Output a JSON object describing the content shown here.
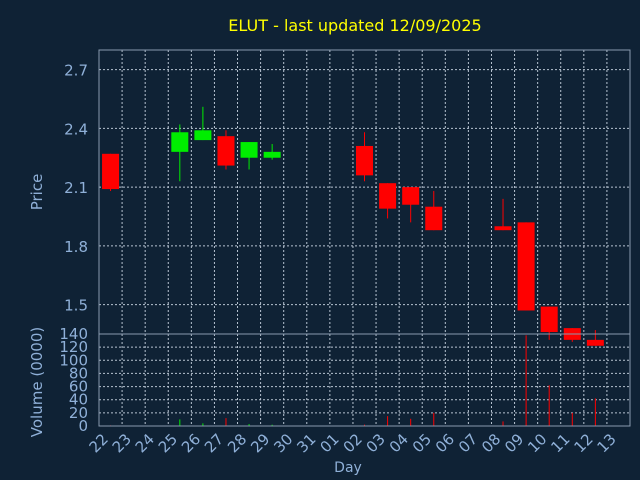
{
  "chart_data": {
    "type": "candlestick",
    "title": "ELUT - last updated 12/09/2025",
    "xlabel": "Day",
    "price_panel": {
      "ylabel": "Price",
      "ylim": [
        1.35,
        2.8
      ],
      "yticks": [
        "2.7",
        "2.4",
        "2.1",
        "1.8",
        "1.5"
      ],
      "grid": true
    },
    "volume_panel": {
      "ylabel": "Volume (0000)",
      "ylim": [
        0,
        140
      ],
      "yticks": [
        "140",
        "120",
        "100",
        "80",
        "60",
        "40",
        "20",
        "0"
      ],
      "grid": true
    },
    "days": [
      "22",
      "23",
      "24",
      "25",
      "26",
      "27",
      "28",
      "29",
      "30",
      "31",
      "01",
      "02",
      "03",
      "04",
      "05",
      "06",
      "07",
      "08",
      "09",
      "10",
      "11",
      "12",
      "13"
    ],
    "candles": [
      {
        "day": "22",
        "open": 2.27,
        "high": 2.27,
        "low": 2.08,
        "close": 2.09,
        "volume": 1
      },
      {
        "day": "25",
        "open": 2.28,
        "high": 2.42,
        "low": 2.13,
        "close": 2.38,
        "volume": 10
      },
      {
        "day": "26",
        "open": 2.34,
        "high": 2.51,
        "low": 2.34,
        "close": 2.39,
        "volume": 4
      },
      {
        "day": "27",
        "open": 2.36,
        "high": 2.39,
        "low": 2.19,
        "close": 2.21,
        "volume": 12
      },
      {
        "day": "28",
        "open": 2.25,
        "high": 2.33,
        "low": 2.19,
        "close": 2.33,
        "volume": 3
      },
      {
        "day": "29",
        "open": 2.25,
        "high": 2.32,
        "low": 2.24,
        "close": 2.28,
        "volume": 2
      },
      {
        "day": "02",
        "open": 2.31,
        "high": 2.38,
        "low": 2.13,
        "close": 2.16,
        "volume": 2
      },
      {
        "day": "03",
        "open": 2.12,
        "high": 2.12,
        "low": 1.94,
        "close": 1.99,
        "volume": 15
      },
      {
        "day": "04",
        "open": 2.1,
        "high": 2.1,
        "low": 1.92,
        "close": 2.01,
        "volume": 11
      },
      {
        "day": "05",
        "open": 2.0,
        "high": 2.08,
        "low": 1.88,
        "close": 1.88,
        "volume": 20
      },
      {
        "day": "08",
        "open": 1.9,
        "high": 2.04,
        "low": 1.88,
        "close": 1.88,
        "volume": 7
      },
      {
        "day": "09",
        "open": 1.92,
        "high": 1.92,
        "low": 1.47,
        "close": 1.47,
        "volume": 138
      },
      {
        "day": "10",
        "open": 1.49,
        "high": 1.49,
        "low": 1.32,
        "close": 1.36,
        "volume": 62
      },
      {
        "day": "11",
        "open": 1.38,
        "high": 1.38,
        "low": 1.31,
        "close": 1.32,
        "volume": 20
      },
      {
        "day": "12",
        "open": 1.32,
        "high": 1.37,
        "low": 1.29,
        "close": 1.29,
        "volume": 42
      }
    ],
    "colors": {
      "background": "#0f2235",
      "frame": "#8a9bb0",
      "grid": "#b8c4d2",
      "title": "#ffff00",
      "axis_text": "#8fb0d8",
      "up": "#00ee00",
      "down": "#ff0000"
    }
  }
}
